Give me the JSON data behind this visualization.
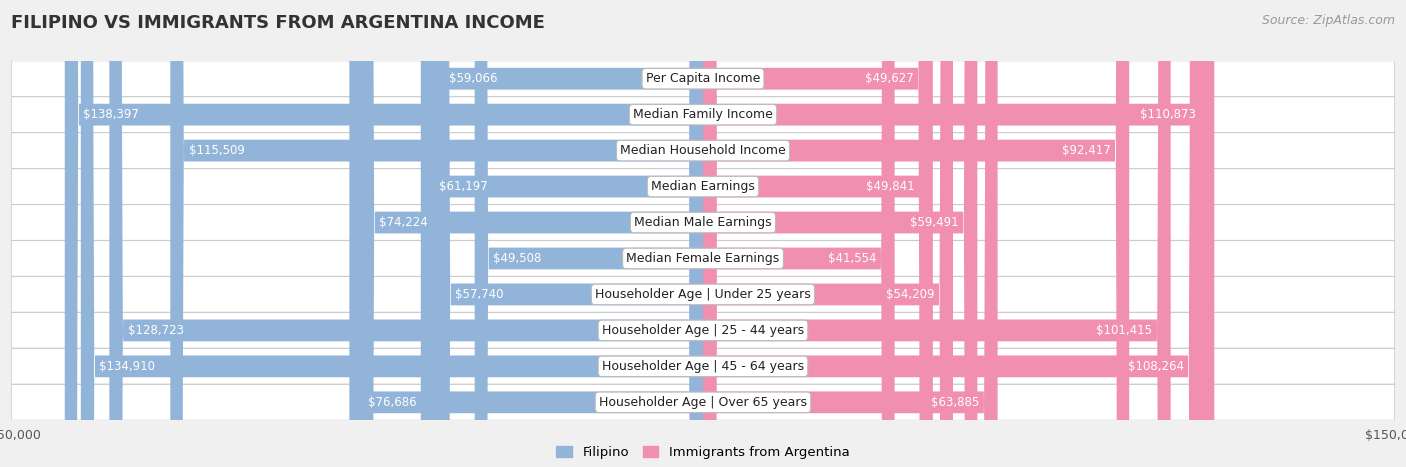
{
  "title": "FILIPINO VS IMMIGRANTS FROM ARGENTINA INCOME",
  "source": "Source: ZipAtlas.com",
  "categories": [
    "Per Capita Income",
    "Median Family Income",
    "Median Household Income",
    "Median Earnings",
    "Median Male Earnings",
    "Median Female Earnings",
    "Householder Age | Under 25 years",
    "Householder Age | 25 - 44 years",
    "Householder Age | 45 - 64 years",
    "Householder Age | Over 65 years"
  ],
  "filipino_values": [
    59066,
    138397,
    115509,
    61197,
    74224,
    49508,
    57740,
    128723,
    134910,
    76686
  ],
  "argentina_values": [
    49627,
    110873,
    92417,
    49841,
    59491,
    41554,
    54209,
    101415,
    108264,
    63885
  ],
  "filipino_color": "#92b4d9",
  "argentina_color": "#f08faf",
  "filipino_label": "Filipino",
  "argentina_label": "Immigrants from Argentina",
  "bar_height": 0.6,
  "xlim": 150000,
  "background_color": "#f0f0f0",
  "row_color": "#ffffff",
  "value_label_inside_color": "#ffffff",
  "value_label_outside_color": "#444444",
  "title_fontsize": 13,
  "cat_fontsize": 9,
  "val_fontsize": 8.5,
  "tick_fontsize": 9,
  "source_fontsize": 9,
  "inside_threshold": 30000
}
